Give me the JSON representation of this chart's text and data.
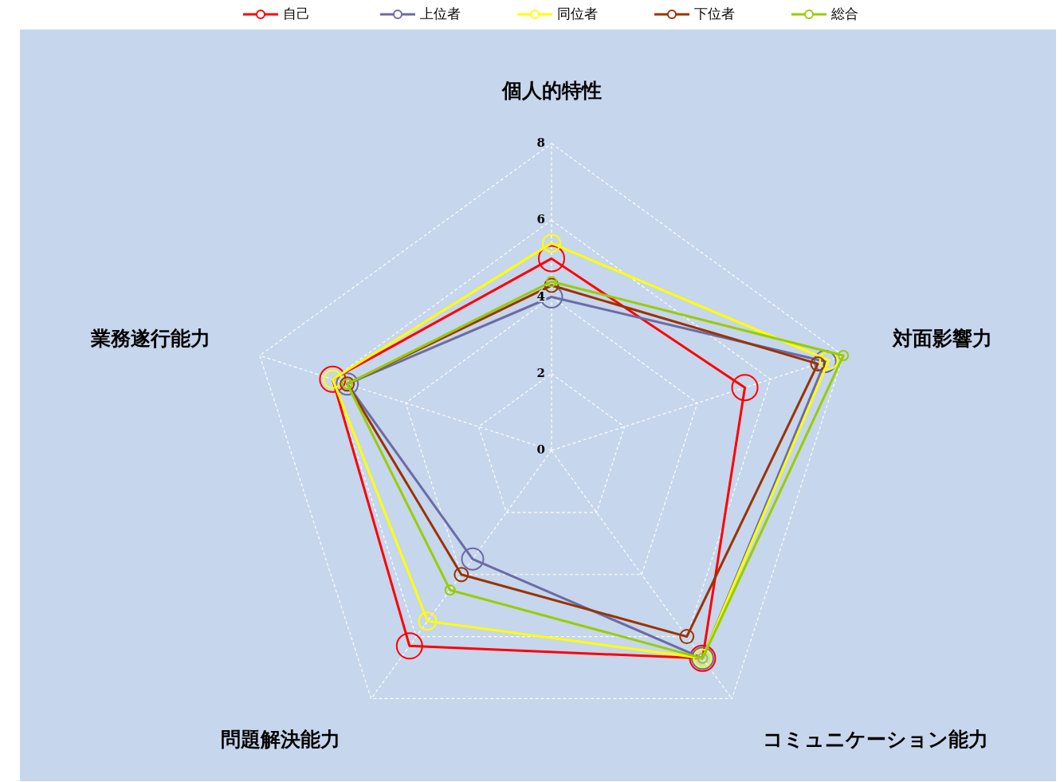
{
  "chart_data": {
    "type": "radar",
    "categories": [
      "個人的特性",
      "対面影響力",
      "コミュニケーション能力",
      "問題解決能力",
      "業務遂行能力"
    ],
    "series": [
      {
        "name": "自己",
        "color": "#ff0000",
        "values": [
          5.0,
          5.3,
          6.7,
          6.3,
          6.0
        ]
      },
      {
        "name": "上位者",
        "color": "#6b6ba6",
        "values": [
          4.0,
          7.5,
          6.7,
          3.5,
          5.6
        ]
      },
      {
        "name": "同位者",
        "color": "#ffff00",
        "values": [
          5.4,
          7.6,
          6.7,
          5.5,
          6.0
        ]
      },
      {
        "name": "下位者",
        "color": "#993300",
        "values": [
          4.3,
          7.3,
          6.0,
          4.0,
          5.6
        ]
      },
      {
        "name": "総合",
        "color": "#99cc00",
        "values": [
          4.4,
          8.0,
          6.7,
          4.5,
          5.6
        ]
      }
    ],
    "ylim": [
      0,
      8
    ],
    "yticks": [
      0,
      2,
      4,
      6,
      8
    ],
    "grid": true,
    "legend": "top",
    "marker": "circle"
  }
}
